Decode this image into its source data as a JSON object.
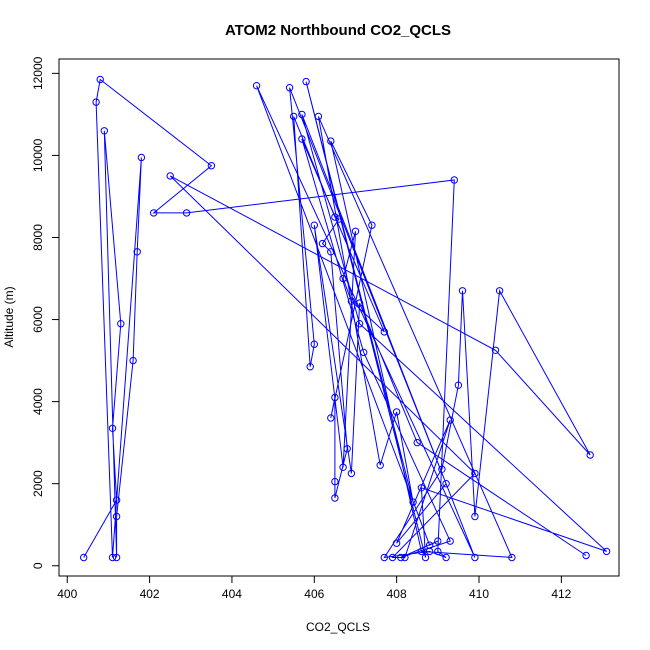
{
  "chart_data": {
    "type": "line",
    "title": "ATOM2 Northbound CO2_QCLS",
    "xlabel": "CO2_QCLS",
    "ylabel": "Altitude (m)",
    "xlim": [
      399.8,
      413.4
    ],
    "ylim": [
      -250,
      12350
    ],
    "xticks": [
      "400",
      "402",
      "404",
      "406",
      "408",
      "410",
      "412"
    ],
    "yticks": [
      "0",
      "2000",
      "4000",
      "6000",
      "8000",
      "10000",
      "12000"
    ],
    "grid": false,
    "marker": "open-circle",
    "color": "#0000ff",
    "series": [
      {
        "values": [
          [
            400.4,
            200
          ],
          [
            401.2,
            1600
          ],
          [
            401.1,
            3350
          ],
          [
            401.3,
            5900
          ],
          [
            400.9,
            10600
          ],
          [
            401.2,
            200
          ],
          [
            401.2,
            1200
          ],
          [
            401.6,
            5000
          ],
          [
            401.7,
            7650
          ],
          [
            401.8,
            9950
          ],
          [
            401.1,
            200
          ],
          [
            400.7,
            11300
          ],
          [
            400.8,
            11850
          ],
          [
            403.5,
            9750
          ],
          [
            402.1,
            8600
          ],
          [
            402.9,
            8600
          ],
          [
            409.4,
            9400
          ],
          [
            409.0,
            350
          ],
          [
            409.2,
            200
          ],
          [
            408.8,
            350
          ],
          [
            407.7,
            200
          ],
          [
            409.1,
            2350
          ],
          [
            409.5,
            4400
          ],
          [
            409.6,
            6700
          ],
          [
            409.9,
            1200
          ],
          [
            410.5,
            6700
          ],
          [
            412.7,
            2700
          ],
          [
            410.4,
            5250
          ],
          [
            402.5,
            9500
          ],
          [
            409.9,
            2250
          ],
          [
            407.9,
            200
          ],
          [
            408.2,
            200
          ],
          [
            409.3,
            3550
          ],
          [
            408.0,
            550
          ],
          [
            409.2,
            2000
          ],
          [
            405.4,
            11650
          ],
          [
            406.0,
            5400
          ],
          [
            405.9,
            4850
          ],
          [
            405.5,
            10950
          ],
          [
            406.5,
            8500
          ],
          [
            406.6,
            8450
          ],
          [
            406.2,
            7850
          ],
          [
            406.4,
            7650
          ],
          [
            406.8,
            2850
          ],
          [
            406.5,
            1650
          ],
          [
            406.5,
            2050
          ],
          [
            406.5,
            4100
          ],
          [
            406.4,
            3600
          ],
          [
            407.4,
            8300
          ],
          [
            406.4,
            10350
          ],
          [
            408.6,
            350
          ],
          [
            410.8,
            200
          ],
          [
            406.1,
            10950
          ],
          [
            407.6,
            2450
          ],
          [
            408.0,
            3750
          ],
          [
            408.4,
            1550
          ],
          [
            405.8,
            11800
          ],
          [
            408.7,
            200
          ],
          [
            408.6,
            1900
          ],
          [
            413.1,
            350
          ],
          [
            407.1,
            5900
          ],
          [
            405.7,
            11000
          ],
          [
            409.9,
            200
          ],
          [
            404.6,
            11700
          ],
          [
            408.8,
            500
          ],
          [
            409.0,
            600
          ],
          [
            408.1,
            200
          ],
          [
            409.3,
            600
          ],
          [
            407.2,
            5200
          ],
          [
            405.7,
            10400
          ],
          [
            407.7,
            5700
          ],
          [
            406.9,
            6450
          ],
          [
            406.7,
            7000
          ],
          [
            407.0,
            8150
          ],
          [
            406.7,
            2400
          ],
          [
            406.0,
            8300
          ],
          [
            406.9,
            2250
          ],
          [
            407.1,
            6400
          ],
          [
            408.5,
            3000
          ],
          [
            412.6,
            250
          ]
        ]
      }
    ]
  }
}
